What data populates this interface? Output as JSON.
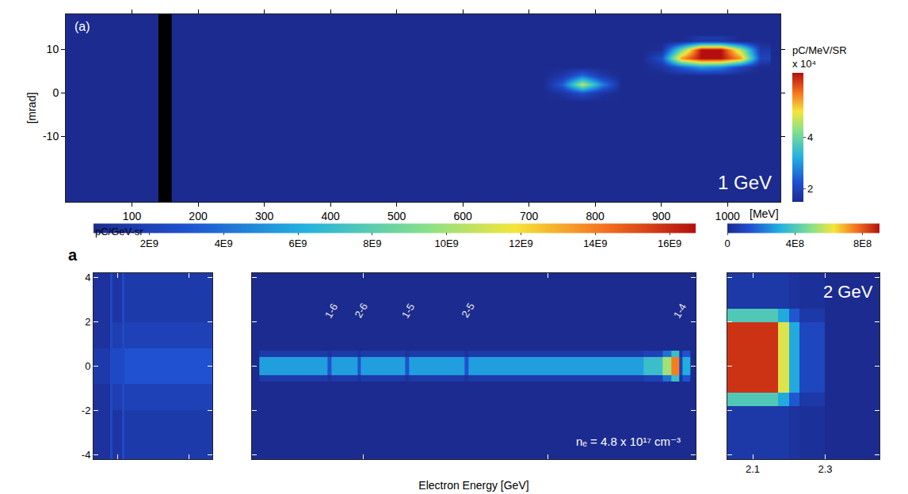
{
  "chart_data": [
    {
      "type": "heatmap",
      "panel_label": "(a)",
      "annotations": [
        "1 GeV"
      ],
      "x_label": "[MeV]",
      "y_label": "[mrad]",
      "x": [
        720,
        750,
        780,
        810,
        840,
        870,
        900,
        930,
        960,
        990,
        1020,
        1050
      ],
      "y": [
        -2,
        0,
        2,
        4,
        6,
        8,
        10,
        12
      ],
      "z": [
        [
          15000,
          15000,
          15000,
          15000,
          15000,
          15000,
          15000,
          15000,
          15000,
          15000,
          15000,
          15000
        ],
        [
          15000,
          17000,
          22000,
          17000,
          15000,
          15000,
          15000,
          15000,
          15000,
          15000,
          15000,
          15000
        ],
        [
          15000,
          24000,
          46000,
          28000,
          15000,
          15000,
          15000,
          15000,
          15000,
          15000,
          15000,
          15000
        ],
        [
          15000,
          18000,
          26000,
          18000,
          15000,
          15000,
          15000,
          15000,
          15000,
          15000,
          15000,
          15000
        ],
        [
          15000,
          15000,
          15000,
          15000,
          15000,
          15000,
          17000,
          24000,
          30000,
          28000,
          20000,
          15000
        ],
        [
          15000,
          15000,
          15000,
          15000,
          15000,
          15000,
          22000,
          55000,
          65000,
          65000,
          55000,
          20000
        ],
        [
          15000,
          15000,
          15000,
          15000,
          15000,
          15000,
          16000,
          40000,
          65000,
          65000,
          45000,
          18000
        ],
        [
          15000,
          15000,
          15000,
          15000,
          15000,
          15000,
          15000,
          15000,
          18000,
          18000,
          15000,
          15000
        ]
      ],
      "xlim": [
        0,
        1080
      ],
      "xticks": [
        100,
        200,
        300,
        400,
        500,
        600,
        700,
        800,
        900,
        1000
      ],
      "ylim": [
        -25,
        18
      ],
      "yticks": [
        -10,
        0,
        10
      ],
      "blocked_range": [
        140,
        160
      ],
      "colorbar": {
        "title": "pC/MeV/SR",
        "scale_label": "x 10⁴",
        "range": [
          15000,
          65000
        ],
        "ticks": [
          {
            "value": 20000,
            "label": "2"
          },
          {
            "value": 40000,
            "label": "4"
          }
        ]
      }
    },
    {
      "type": "heatmap",
      "panel_label": "a",
      "x_edges": [
        0.3,
        0.37,
        0.38,
        0.42,
        0.43,
        0.8
      ],
      "y_edges": [
        -4.2,
        -2,
        -0.8,
        0.8,
        2,
        4.2
      ],
      "z": [
        [
          1000000000.0,
          2500000000.0,
          1200000000.0,
          2500000000.0,
          1500000000.0
        ],
        [
          1000000000.0,
          2500000000.0,
          1800000000.0,
          2500000000.0,
          2000000000.0
        ],
        [
          1500000000.0,
          2500000000.0,
          2500000000.0,
          2500000000.0,
          3000000000.0
        ],
        [
          1000000000.0,
          2500000000.0,
          1800000000.0,
          2500000000.0,
          2000000000.0
        ],
        [
          1000000000.0,
          2500000000.0,
          1200000000.0,
          2500000000.0,
          1500000000.0
        ]
      ],
      "xlim": [
        0.3,
        0.8
      ],
      "xticks": [
        0.4,
        0.7
      ],
      "ylim": [
        -4.2,
        4.2
      ],
      "yticks": [
        -4,
        -2,
        0,
        2,
        4
      ],
      "tick_labels": "y",
      "colorbar": {
        "title": "pC/GeV-sr",
        "range": [
          500000000.0,
          16700000000.0
        ],
        "ticks": [
          {
            "value": 2000000000.0,
            "label": "2E9"
          },
          {
            "value": 4000000000.0,
            "label": "4E9"
          },
          {
            "value": 6000000000.0,
            "label": "6E9"
          },
          {
            "value": 8000000000.0,
            "label": "8E9"
          },
          {
            "value": 10000000000.0,
            "label": "10E9"
          },
          {
            "value": 12000000000.0,
            "label": "12E9"
          },
          {
            "value": 14000000000.0,
            "label": "14E9"
          },
          {
            "value": 16000000000.0,
            "label": "16E9"
          }
        ]
      }
    },
    {
      "type": "heatmap",
      "x_label": "Electron Energy [GeV]",
      "annotations": [
        "nₑ = 4.8 x 10¹⁷ cm⁻³"
      ],
      "peak_labels": [
        {
          "label": "1-6",
          "x": 1.014
        },
        {
          "label": "2-6",
          "x": 1.094
        },
        {
          "label": "1-5",
          "x": 1.222
        },
        {
          "label": "2-5",
          "x": 1.383
        },
        {
          "label": "1-4",
          "x": 1.957
        }
      ],
      "x_edges": [
        0.82,
        1.005,
        1.015,
        1.085,
        1.095,
        1.215,
        1.225,
        1.375,
        1.385,
        1.86,
        1.91,
        1.935,
        1.955,
        1.965,
        1.985
      ],
      "y_edges": [
        -0.7,
        -0.4,
        0.4,
        0.7
      ],
      "z": [
        [
          1500000000.0,
          1000000000.0,
          1500000000.0,
          1000000000.0,
          1500000000.0,
          1000000000.0,
          1500000000.0,
          1000000000.0,
          1500000000.0,
          2000000000.0,
          4000000000.0,
          7000000000.0,
          1000000000.0,
          3000000000.0
        ],
        [
          5500000000.0,
          3000000000.0,
          5500000000.0,
          3000000000.0,
          5500000000.0,
          3000000000.0,
          5500000000.0,
          3000000000.0,
          5500000000.0,
          7000000000.0,
          10000000000.0,
          14000000000.0,
          2000000000.0,
          6000000000.0
        ],
        [
          1500000000.0,
          1000000000.0,
          1500000000.0,
          1000000000.0,
          1500000000.0,
          1000000000.0,
          1500000000.0,
          1000000000.0,
          1500000000.0,
          2000000000.0,
          4000000000.0,
          7000000000.0,
          1000000000.0,
          3000000000.0
        ]
      ],
      "xlim": [
        0.8,
        2.0
      ],
      "xticks": [
        1.1,
        1.6
      ],
      "ylim": [
        -4.2,
        4.2
      ],
      "yticks": [
        -4,
        -2,
        0,
        2,
        4
      ],
      "tick_labels": false
    },
    {
      "type": "heatmap",
      "annotations": [
        "2 GeV"
      ],
      "x_edges": [
        2.03,
        2.17,
        2.2,
        2.23,
        2.3,
        2.45
      ],
      "y_edges": [
        -4.2,
        -1.8,
        -1.2,
        2.0,
        2.6,
        4.2
      ],
      "z": [
        [
          50000000.0,
          50000000.0,
          30000000.0,
          20000000.0,
          0
        ],
        [
          400000000.0,
          300000000.0,
          150000000.0,
          50000000.0,
          0
        ],
        [
          850000000.0,
          600000000.0,
          300000000.0,
          100000000.0,
          0
        ],
        [
          400000000.0,
          300000000.0,
          150000000.0,
          50000000.0,
          0
        ],
        [
          50000000.0,
          50000000.0,
          30000000.0,
          20000000.0,
          0
        ]
      ],
      "xlim": [
        2.03,
        2.45
      ],
      "xticks": [
        2.1,
        2.3
      ],
      "ylim": [
        -4.2,
        4.2
      ],
      "yticks": [
        -4,
        -2,
        0,
        2,
        4
      ],
      "tick_labels": "x",
      "colorbar": {
        "range": [
          0,
          900000000.0
        ],
        "ticks": [
          0,
          {
            "value": 400000000.0,
            "label": "4E8"
          },
          {
            "value": 800000000.0,
            "label": "8E8"
          }
        ]
      }
    }
  ]
}
